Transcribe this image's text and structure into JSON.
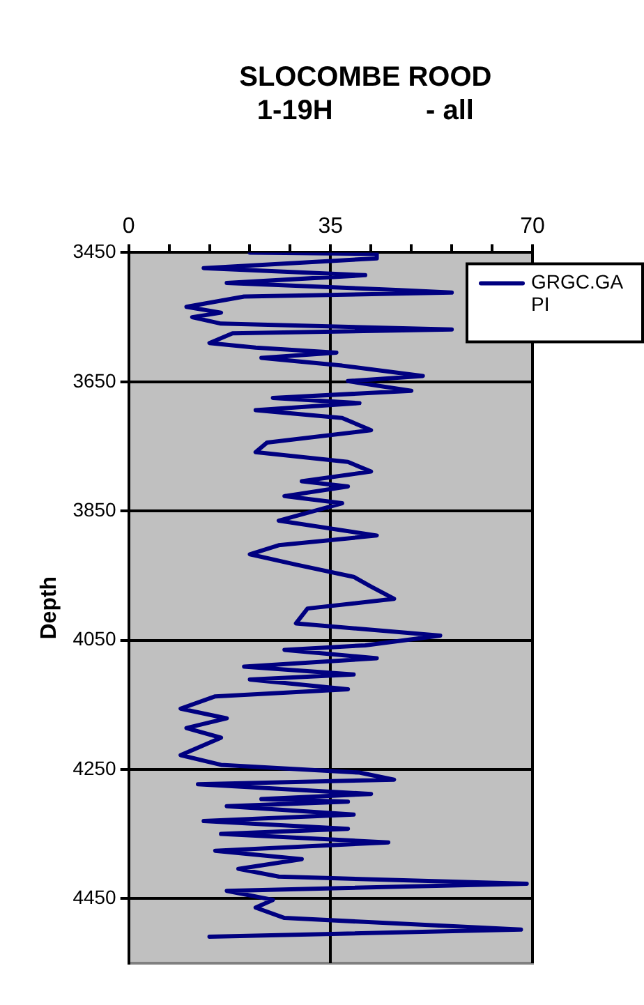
{
  "chart_data": {
    "type": "line",
    "title": "SLOCOMBE ROOD\n1-19H            - all",
    "ylabel": "Depth",
    "series": [
      {
        "name": "GRGC.GAPI",
        "color": "#000080",
        "x": [
          21,
          43,
          43,
          13,
          41,
          17,
          47,
          56,
          20,
          10,
          16,
          11,
          16,
          56,
          18,
          14,
          22,
          36,
          23,
          37,
          51,
          38,
          49,
          25,
          40,
          22,
          37,
          42,
          24,
          22,
          38,
          42,
          30,
          38,
          27,
          37,
          26,
          43,
          26,
          21,
          29,
          39,
          42,
          46,
          31,
          29,
          54,
          41,
          27,
          43,
          20,
          39,
          21,
          38,
          15,
          9,
          17,
          10,
          16,
          9,
          16,
          40,
          46,
          12,
          42,
          23,
          38,
          17,
          39,
          13,
          38,
          16,
          45,
          15,
          30,
          19,
          26,
          69,
          17,
          25,
          22,
          27,
          68,
          14
        ],
        "values": [
          3450,
          3452,
          3459,
          3474,
          3485,
          3497,
          3508,
          3512,
          3518,
          3534,
          3543,
          3550,
          3560,
          3569,
          3575,
          3590,
          3597,
          3605,
          3613,
          3625,
          3641,
          3649,
          3664,
          3675,
          3683,
          3694,
          3706,
          3725,
          3744,
          3759,
          3774,
          3789,
          3804,
          3812,
          3827,
          3838,
          3865,
          3888,
          3903,
          3917,
          3933,
          3952,
          3967,
          3986,
          4001,
          4024,
          4043,
          4058,
          4065,
          4078,
          4091,
          4103,
          4111,
          4126,
          4137,
          4156,
          4171,
          4186,
          4201,
          4228,
          4243,
          4255,
          4266,
          4273,
          4288,
          4296,
          4300,
          4307,
          4320,
          4330,
          4342,
          4350,
          4363,
          4376,
          4389,
          4404,
          4416,
          4427,
          4438,
          4452,
          4464,
          4480,
          4498,
          4509
        ]
      }
    ],
    "xlim": [
      0,
      70
    ],
    "xticks": [
      0,
      {
        "value": 7,
        "label": null
      },
      {
        "value": 14,
        "label": null
      },
      {
        "value": 21,
        "label": null
      },
      {
        "value": 28,
        "label": null
      },
      35,
      {
        "value": 42,
        "label": null
      },
      {
        "value": 49,
        "label": null
      },
      {
        "value": 56,
        "label": null
      },
      {
        "value": 63,
        "label": null
      },
      70
    ],
    "ylim": [
      4550,
      3450
    ],
    "yticks": [
      3450,
      3650,
      3850,
      4050,
      4250,
      4450
    ],
    "grid": true,
    "legend": "top right",
    "marker": "none",
    "line_style": "solid"
  }
}
